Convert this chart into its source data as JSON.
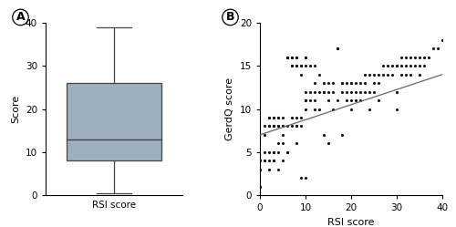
{
  "panel_A": {
    "label": "A",
    "box_stats": {
      "median": 13.0,
      "q1": 8.0,
      "q3": 26.0,
      "whisker_low": 0.5,
      "whisker_high": 39.0
    },
    "box_color": "#9EAFC0",
    "box_edge_color": "#444444",
    "ylabel": "Score",
    "xlabel": "RSI score",
    "ylim": [
      0,
      40
    ],
    "yticks": [
      0,
      10,
      20,
      30,
      40
    ]
  },
  "panel_B": {
    "label": "B",
    "scatter_x": [
      0,
      0,
      0,
      0,
      0,
      0,
      1,
      1,
      1,
      1,
      1,
      2,
      2,
      2,
      2,
      2,
      2,
      2,
      3,
      3,
      3,
      3,
      3,
      3,
      3,
      3,
      3,
      4,
      4,
      4,
      4,
      4,
      4,
      4,
      5,
      5,
      5,
      5,
      5,
      5,
      6,
      6,
      6,
      6,
      6,
      6,
      6,
      7,
      7,
      7,
      7,
      7,
      7,
      8,
      8,
      8,
      8,
      8,
      8,
      8,
      8,
      9,
      9,
      9,
      9,
      9,
      9,
      10,
      10,
      10,
      10,
      10,
      10,
      10,
      10,
      11,
      11,
      11,
      12,
      12,
      12,
      12,
      12,
      13,
      13,
      13,
      14,
      14,
      14,
      14,
      15,
      15,
      15,
      15,
      16,
      16,
      16,
      17,
      17,
      17,
      18,
      18,
      18,
      18,
      19,
      19,
      19,
      20,
      20,
      20,
      20,
      20,
      21,
      21,
      21,
      22,
      22,
      22,
      23,
      23,
      23,
      24,
      24,
      24,
      25,
      25,
      25,
      26,
      26,
      26,
      27,
      27,
      28,
      28,
      29,
      29,
      30,
      30,
      30,
      30,
      31,
      31,
      31,
      32,
      32,
      32,
      33,
      33,
      33,
      34,
      34,
      35,
      35,
      35,
      36,
      36,
      37,
      38,
      39,
      40
    ],
    "scatter_y": [
      4,
      4,
      3,
      3,
      1,
      1,
      8,
      7,
      5,
      4,
      4,
      9,
      9,
      8,
      8,
      5,
      4,
      3,
      9,
      9,
      8,
      8,
      8,
      5,
      5,
      4,
      4,
      3,
      9,
      9,
      8,
      8,
      6,
      5,
      4,
      9,
      8,
      8,
      7,
      6,
      5,
      16,
      16,
      16,
      16,
      8,
      5,
      16,
      16,
      15,
      15,
      9,
      8,
      16,
      16,
      15,
      15,
      9,
      8,
      8,
      6,
      15,
      15,
      14,
      9,
      8,
      2,
      16,
      16,
      15,
      12,
      11,
      11,
      10,
      2,
      15,
      12,
      11,
      15,
      13,
      12,
      11,
      10,
      14,
      12,
      10,
      13,
      12,
      12,
      7,
      13,
      12,
      11,
      6,
      13,
      12,
      10,
      17,
      17,
      11,
      13,
      13,
      12,
      7,
      13,
      12,
      11,
      13,
      13,
      12,
      11,
      10,
      13,
      12,
      11,
      13,
      12,
      11,
      14,
      13,
      12,
      14,
      12,
      10,
      14,
      13,
      12,
      14,
      13,
      11,
      15,
      14,
      15,
      14,
      15,
      14,
      15,
      15,
      12,
      10,
      16,
      15,
      14,
      16,
      15,
      14,
      16,
      15,
      14,
      16,
      15,
      16,
      15,
      14,
      16,
      15,
      16,
      17,
      17,
      18
    ],
    "line_x": [
      0,
      40
    ],
    "line_y": [
      7.0,
      14.0
    ],
    "line_color": "#666666",
    "dot_color": "#111111",
    "dot_size": 5,
    "xlabel": "RSI score",
    "ylabel": "GerdQ score",
    "xlim": [
      0,
      40
    ],
    "ylim": [
      0,
      20
    ],
    "xticks": [
      0,
      10,
      20,
      30,
      40
    ],
    "yticks": [
      0,
      5,
      10,
      15,
      20
    ]
  },
  "figure_bg": "#ffffff"
}
